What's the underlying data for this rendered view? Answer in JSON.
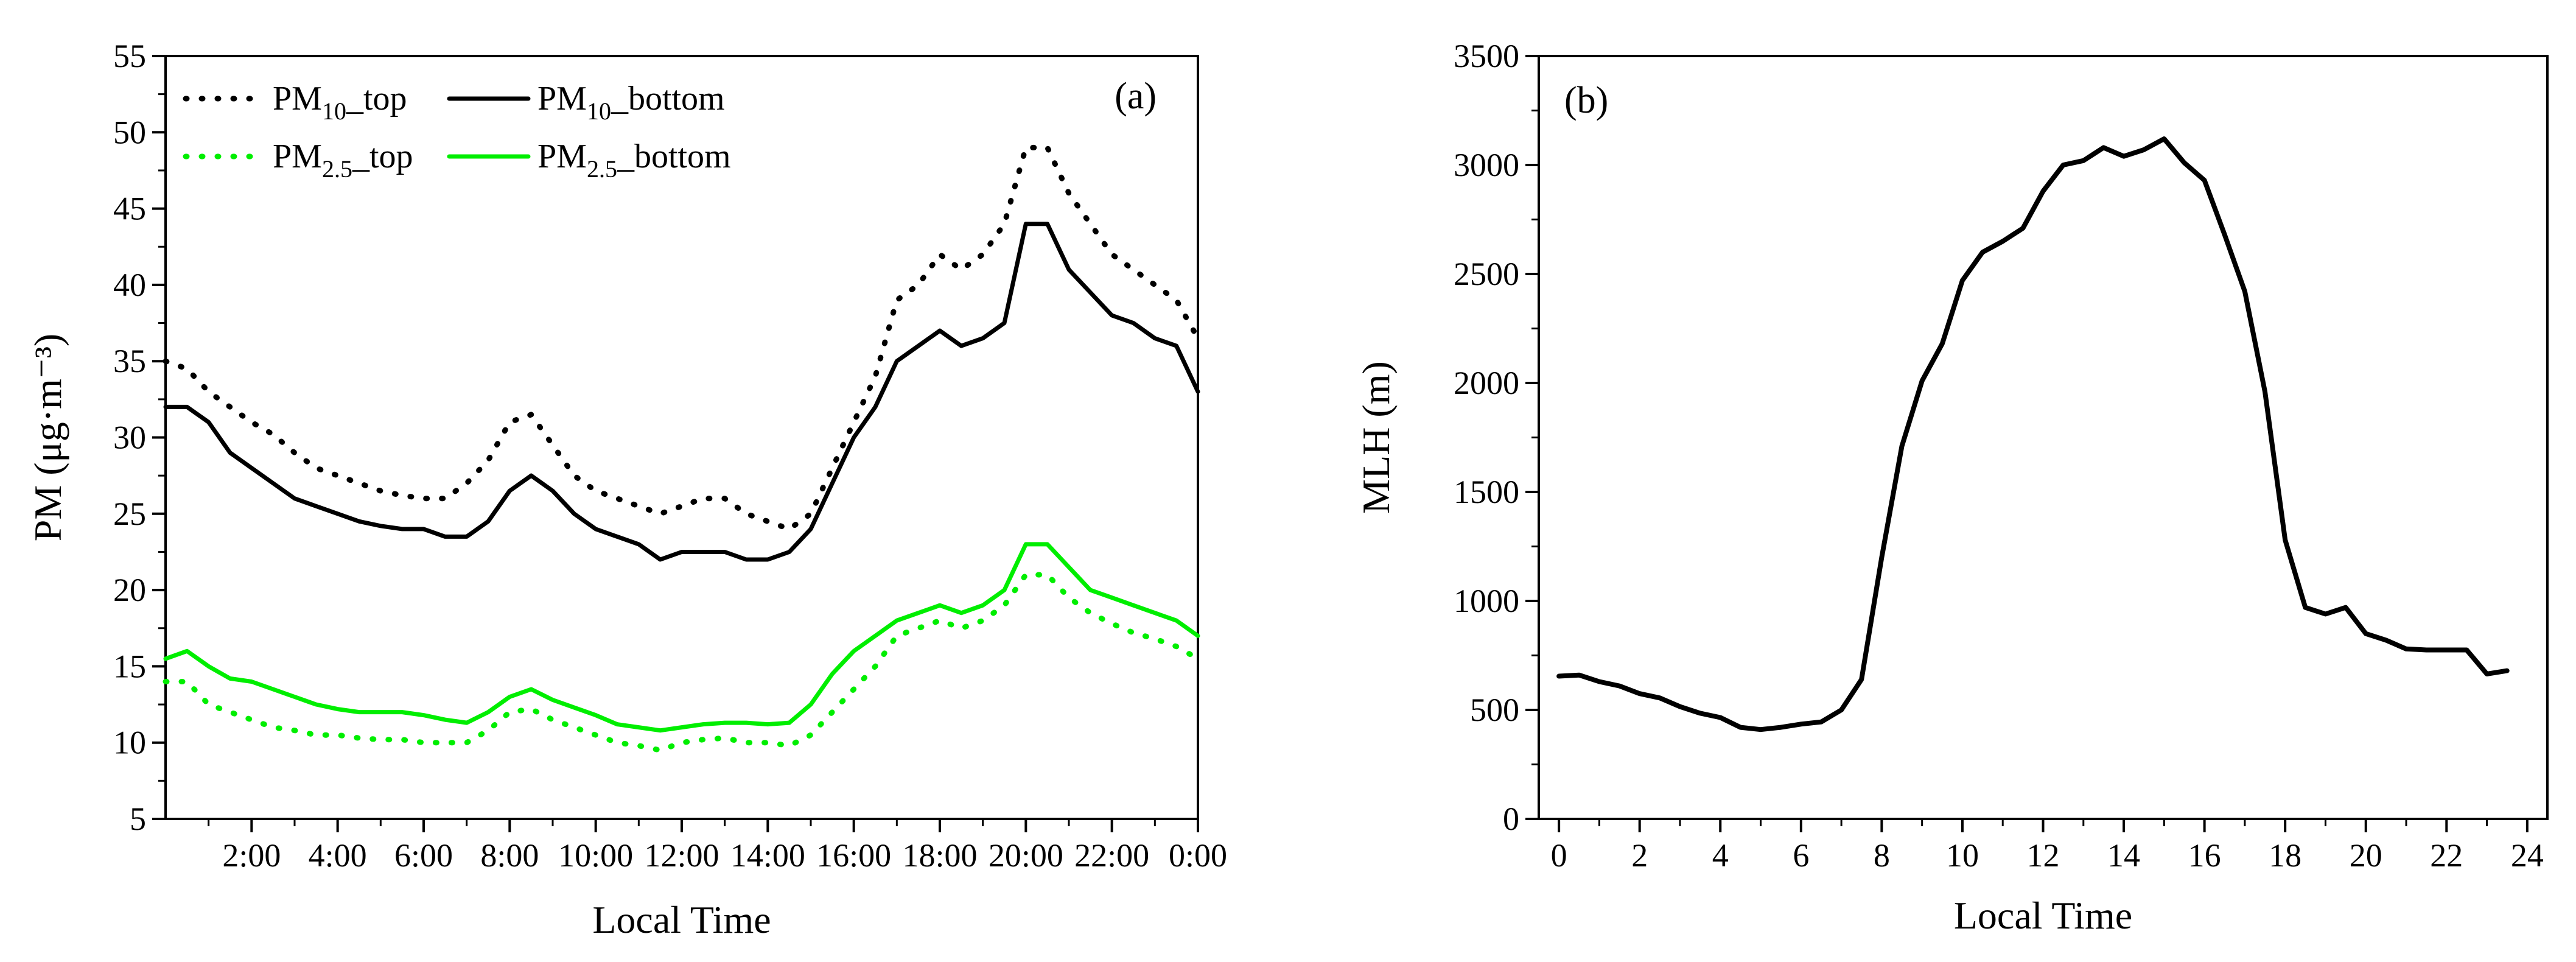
{
  "chart_data": [
    {
      "panel": "(a)",
      "type": "line",
      "xlabel": "Local Time",
      "ylabel": "PM (μg·m⁻³)",
      "xlim": [
        0,
        24
      ],
      "ylim": [
        5,
        55
      ],
      "x_ticks": [
        {
          "value": 2,
          "label": "2:00"
        },
        {
          "value": 4,
          "label": "4:00"
        },
        {
          "value": 6,
          "label": "6:00"
        },
        {
          "value": 8,
          "label": "8:00"
        },
        {
          "value": 10,
          "label": "10:00"
        },
        {
          "value": 12,
          "label": "12:00"
        },
        {
          "value": 14,
          "label": "14:00"
        },
        {
          "value": 16,
          "label": "16:00"
        },
        {
          "value": 18,
          "label": "18:00"
        },
        {
          "value": 20,
          "label": "20:00"
        },
        {
          "value": 22,
          "label": "22:00"
        },
        {
          "value": 24,
          "label": "0:00"
        }
      ],
      "y_ticks": [
        5,
        10,
        15,
        20,
        25,
        30,
        35,
        40,
        45,
        50,
        55
      ],
      "legend": "top-left",
      "colors": {
        "pm10": "#000000",
        "pm25": "#00ee00"
      },
      "x": [
        0,
        0.5,
        1,
        1.5,
        2,
        2.5,
        3,
        3.5,
        4,
        4.5,
        5,
        5.5,
        6,
        6.5,
        7,
        7.5,
        8,
        8.5,
        9,
        9.5,
        10,
        10.5,
        11,
        11.5,
        12,
        12.5,
        13,
        13.5,
        14,
        14.5,
        15,
        15.5,
        16,
        16.5,
        17,
        17.5,
        18,
        18.5,
        19,
        19.5,
        20,
        20.5,
        21,
        21.5,
        22,
        22.5,
        23,
        23.5,
        24
      ],
      "series": [
        {
          "key": "pm10_top",
          "sub": "10",
          "style": "dotted",
          "color": "#000000",
          "values": [
            35,
            34.5,
            33,
            32,
            31,
            30.2,
            29,
            28,
            27.5,
            27,
            26.5,
            26.2,
            26,
            26,
            27,
            28.5,
            31,
            31.5,
            29.5,
            27.5,
            26.5,
            26,
            25.5,
            25,
            25.5,
            26,
            26,
            25,
            24.5,
            24,
            25,
            28,
            31,
            34,
            39,
            40,
            42,
            41,
            42,
            44,
            49,
            49,
            46,
            44,
            42,
            41,
            40,
            39,
            36.5
          ]
        },
        {
          "key": "pm10_bottom",
          "sub": "10",
          "style": "solid",
          "color": "#000000",
          "values": [
            32,
            32,
            31,
            29,
            28,
            27,
            26,
            25.5,
            25,
            24.5,
            24.2,
            24,
            24,
            23.5,
            23.5,
            24.5,
            26.5,
            27.5,
            26.5,
            25,
            24,
            23.5,
            23,
            22,
            22.5,
            22.5,
            22.5,
            22,
            22,
            22.5,
            24,
            27,
            30,
            32,
            35,
            36,
            37,
            36,
            36.5,
            37.5,
            44,
            44,
            41,
            39.5,
            38,
            37.5,
            36.5,
            36,
            33
          ]
        },
        {
          "key": "pm25_top",
          "sub": "2.5",
          "style": "dotted",
          "color": "#00ee00",
          "values": [
            14,
            14,
            12.5,
            12,
            11.5,
            11,
            10.8,
            10.5,
            10.5,
            10.3,
            10.2,
            10.2,
            10,
            10,
            10,
            10.8,
            12,
            12.2,
            11.5,
            11,
            10.5,
            10,
            9.8,
            9.5,
            10,
            10.2,
            10.3,
            10,
            10,
            9.8,
            10.5,
            12,
            13.5,
            15,
            17,
            17.5,
            18,
            17.5,
            18,
            19,
            21,
            21,
            19.5,
            18.5,
            17.8,
            17.2,
            16.8,
            16.3,
            15.5
          ]
        },
        {
          "key": "pm25_bottom",
          "sub": "2.5",
          "style": "solid",
          "color": "#00ee00",
          "values": [
            15.5,
            16,
            15,
            14.2,
            14,
            13.5,
            13,
            12.5,
            12.2,
            12,
            12,
            12,
            11.8,
            11.5,
            11.3,
            12,
            13,
            13.5,
            12.8,
            12.3,
            11.8,
            11.2,
            11,
            10.8,
            11,
            11.2,
            11.3,
            11.3,
            11.2,
            11.3,
            12.5,
            14.5,
            16,
            17,
            18,
            18.5,
            19,
            18.5,
            19,
            20,
            23,
            23,
            21.5,
            20,
            19.5,
            19,
            18.5,
            18,
            17
          ]
        }
      ],
      "legend_entries": [
        {
          "main": "PM",
          "sub": "10",
          "suffix": "_top"
        },
        {
          "main": "PM",
          "sub": "10",
          "suffix": "_bottom"
        },
        {
          "main": "PM",
          "sub": "2.5",
          "suffix": "_top"
        },
        {
          "main": "PM",
          "sub": "2.5",
          "suffix": "_bottom"
        }
      ]
    },
    {
      "panel": "(b)",
      "type": "line",
      "xlabel": "Local Time",
      "ylabel": "MLH (m)",
      "xlim": [
        -0.5,
        24.5
      ],
      "ylim": [
        0,
        3500
      ],
      "x_ticks": [
        {
          "value": 0,
          "label": "0"
        },
        {
          "value": 2,
          "label": "2"
        },
        {
          "value": 4,
          "label": "4"
        },
        {
          "value": 6,
          "label": "6"
        },
        {
          "value": 8,
          "label": "8"
        },
        {
          "value": 10,
          "label": "10"
        },
        {
          "value": 12,
          "label": "12"
        },
        {
          "value": 14,
          "label": "14"
        },
        {
          "value": 16,
          "label": "16"
        },
        {
          "value": 18,
          "label": "18"
        },
        {
          "value": 20,
          "label": "20"
        },
        {
          "value": 22,
          "label": "22"
        },
        {
          "value": 24,
          "label": "24"
        }
      ],
      "y_ticks": [
        0,
        500,
        1000,
        1500,
        2000,
        2500,
        3000,
        3500
      ],
      "x": [
        0,
        0.5,
        1,
        1.5,
        2,
        2.5,
        3,
        3.5,
        4,
        4.5,
        5,
        5.5,
        6,
        6.5,
        7,
        7.5,
        8,
        8.5,
        9,
        9.5,
        10,
        10.5,
        11,
        11.5,
        12,
        12.5,
        13,
        13.5,
        14,
        14.5,
        15,
        15.5,
        16,
        16.5,
        17,
        17.5,
        18,
        18.5,
        19,
        19.5,
        20,
        20.5,
        21,
        21.5,
        22,
        22.5,
        23,
        23.5
      ],
      "series": [
        {
          "key": "mlh",
          "color": "#000000",
          "values": [
            655,
            660,
            630,
            610,
            575,
            555,
            515,
            485,
            465,
            420,
            410,
            420,
            435,
            445,
            500,
            640,
            1200,
            1710,
            2010,
            2180,
            2470,
            2600,
            2650,
            2710,
            2880,
            3000,
            3020,
            3080,
            3040,
            3070,
            3120,
            3010,
            2930,
            2680,
            2420,
            1960,
            1280,
            970,
            940,
            970,
            850,
            820,
            780,
            775,
            775,
            775,
            665,
            680
          ]
        }
      ]
    }
  ]
}
